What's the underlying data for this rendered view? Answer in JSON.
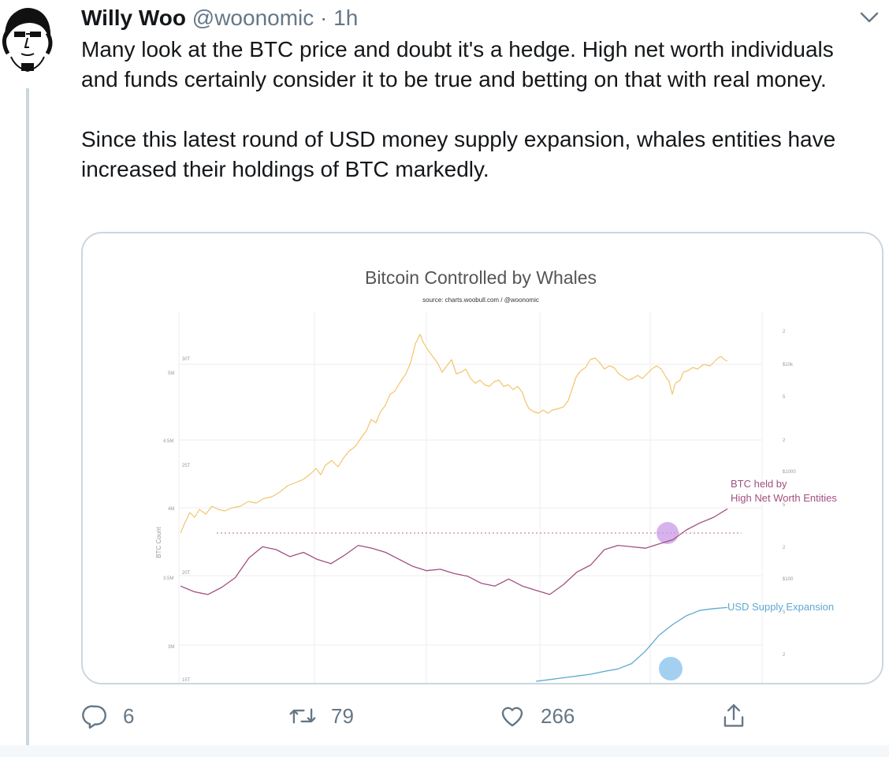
{
  "tweet": {
    "author_name": "Willy Woo",
    "author_handle": "@woonomic",
    "separator": "·",
    "time": "1h",
    "paragraph_1": "Many look at the BTC price and doubt it's a hedge. High net worth individuals and funds certainly consider it to be true and betting on that with real money.",
    "paragraph_2": "Since this latest round of USD money supply expansion, whales entities have increased their holdings of BTC markedly."
  },
  "actions": {
    "reply_count": "6",
    "retweet_count": "79",
    "like_count": "266"
  },
  "chart_data": {
    "type": "line",
    "title": "Bitcoin Controlled by Whales",
    "subtitle": "source: charts.woobull.com / @woonomic",
    "ylabel": "BTC Count",
    "y_left_outer_ticks": [
      "30T",
      "25T",
      "20T",
      "15T"
    ],
    "y_left_inner_ticks": [
      "5M",
      "4.5M",
      "4M",
      "3.5M",
      "3M"
    ],
    "y_right_ticks": [
      "2",
      "$10k",
      "5",
      "2",
      "$1000",
      "5",
      "2",
      "$100",
      "5",
      "2"
    ],
    "grid": true,
    "colors": {
      "price": "#f3c46d",
      "whales": "#a2507f",
      "usd_supply": "#5ea9d1",
      "highlight_purple": "#c89ae6",
      "highlight_blue": "#8cc4ec"
    },
    "series": [
      {
        "name": "BTC held by High Net Worth Entities",
        "label_line1": "BTC held by",
        "label_line2": "High Net Worth Entities",
        "values": [
          3.42,
          3.38,
          3.36,
          3.41,
          3.48,
          3.62,
          3.7,
          3.68,
          3.63,
          3.66,
          3.61,
          3.58,
          3.64,
          3.71,
          3.69,
          3.66,
          3.61,
          3.56,
          3.53,
          3.54,
          3.51,
          3.49,
          3.44,
          3.42,
          3.47,
          3.42,
          3.39,
          3.36,
          3.43,
          3.52,
          3.57,
          3.68,
          3.71,
          3.7,
          3.69,
          3.72,
          3.75,
          3.82,
          3.87,
          3.91,
          3.97
        ]
      },
      {
        "name": "USD Supply Expansion",
        "label": "USD Supply Expansion",
        "values": [
          null,
          null,
          null,
          null,
          null,
          null,
          null,
          null,
          null,
          null,
          null,
          null,
          null,
          null,
          null,
          null,
          null,
          null,
          null,
          null,
          null,
          null,
          null,
          null,
          null,
          null,
          0.0,
          0.05,
          0.1,
          0.15,
          0.2,
          0.28,
          0.35,
          0.5,
          0.85,
          1.3,
          1.6,
          1.85,
          2.0,
          2.05,
          2.08
        ]
      }
    ]
  }
}
